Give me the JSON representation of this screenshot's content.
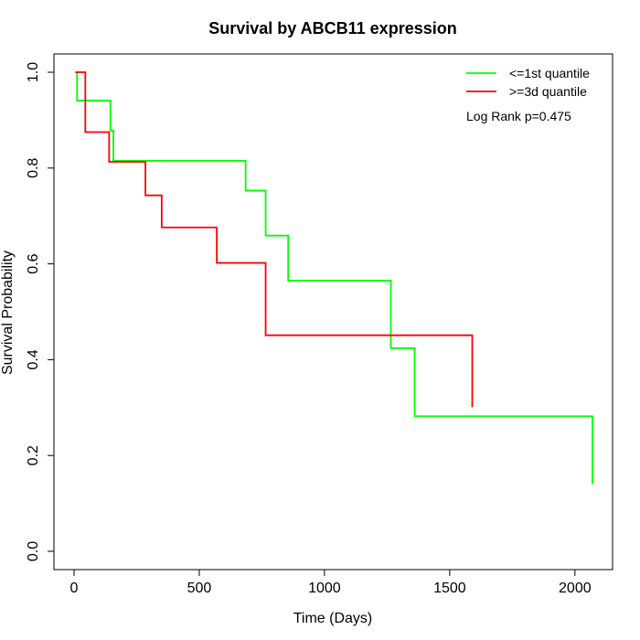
{
  "chart_data": {
    "type": "line",
    "step": true,
    "title": "Survival by ABCB11 expression",
    "xlabel": "Time (Days)",
    "ylabel": "Survival Probability",
    "xlim": [
      0,
      2070
    ],
    "ylim": [
      0,
      1
    ],
    "xticks": [
      0,
      500,
      1000,
      1500,
      2000
    ],
    "xtick_labels": [
      "0",
      "500",
      "1000",
      "1500",
      "2000"
    ],
    "yticks": [
      0,
      0.2,
      0.4,
      0.6,
      0.8,
      1
    ],
    "ytick_labels": [
      "0.0",
      "0.2",
      "0.4",
      "0.6",
      "0.8",
      "1.0"
    ],
    "grid": false,
    "legend_position": "top-right",
    "annotation": "Log Rank p=0.475",
    "series": [
      {
        "name": "<=1st quantile",
        "color": "#00ff00",
        "x": [
          5,
          12,
          135,
          145,
          157,
          685,
          765,
          855,
          1265,
          1360,
          2070
        ],
        "y": [
          1.0,
          0.941,
          0.941,
          0.878,
          0.815,
          0.753,
          0.659,
          0.565,
          0.424,
          0.282,
          0.141
        ]
      },
      {
        "name": ">=3d quantile",
        "color": "#ff0000",
        "x": [
          5,
          25,
          45,
          140,
          285,
          350,
          570,
          765,
          1590
        ],
        "y": [
          1.0,
          1.0,
          0.875,
          0.813,
          0.743,
          0.676,
          0.602,
          0.451,
          0.301
        ]
      }
    ]
  }
}
